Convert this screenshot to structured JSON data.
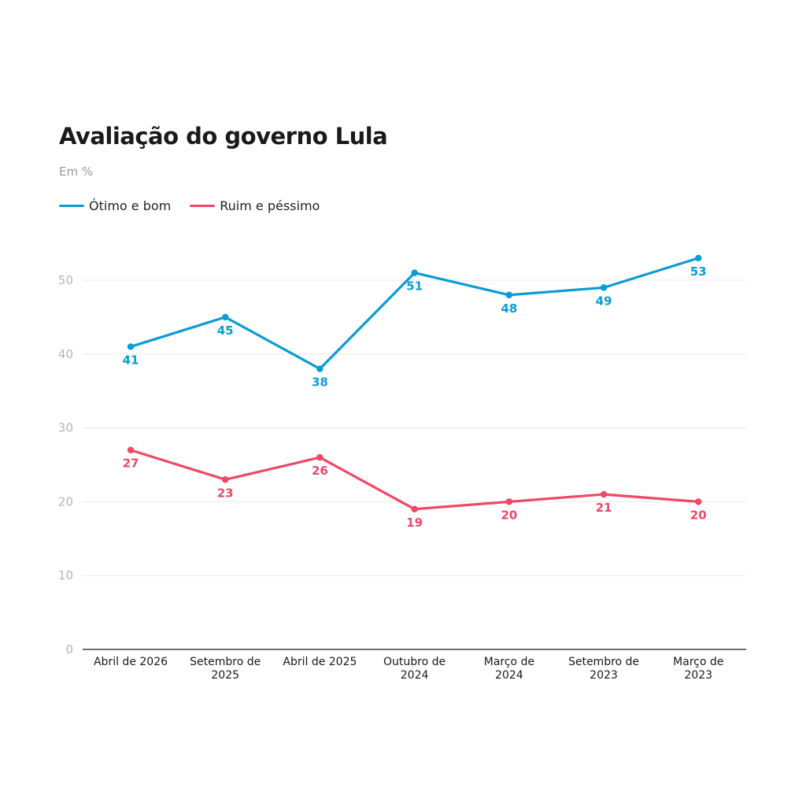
{
  "chart_data": {
    "type": "line",
    "title": "Avaliação do governo Lula",
    "subtitle": "Em %",
    "categories": [
      [
        "Abril de 2026"
      ],
      [
        "Setembro de",
        "2025"
      ],
      [
        "Abril de 2025"
      ],
      [
        "Outubro de",
        "2024"
      ],
      [
        "Março de",
        "2024"
      ],
      [
        "Setembro de",
        "2023"
      ],
      [
        "Março de",
        "2023"
      ]
    ],
    "series": [
      {
        "name": "Ótimo e bom",
        "color": "#0b9bd6",
        "values": [
          41,
          45,
          38,
          51,
          48,
          49,
          53
        ]
      },
      {
        "name": "Ruim e péssimo",
        "color": "#ef4866",
        "values": [
          27,
          23,
          26,
          19,
          20,
          21,
          20
        ]
      }
    ],
    "ylim": [
      0,
      56
    ],
    "yticks": [
      0,
      10,
      20,
      30,
      40,
      50
    ],
    "grid": true,
    "legend_position": "top-left"
  }
}
